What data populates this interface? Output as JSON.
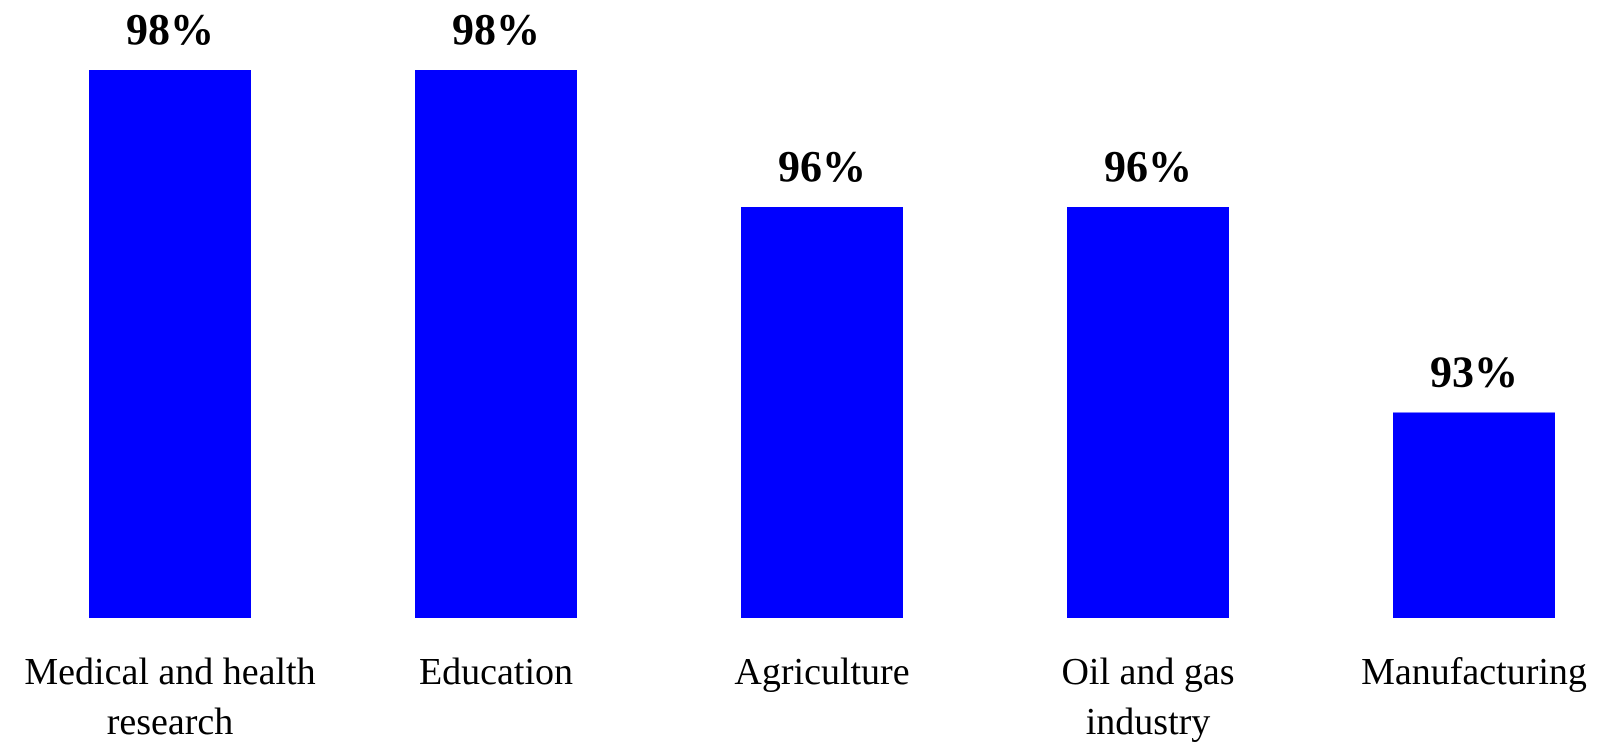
{
  "chart_data": {
    "type": "bar",
    "categories": [
      "Medical and health research",
      "Education",
      "Agriculture",
      "Oil and gas industry",
      "Manufacturing"
    ],
    "category_lines": [
      [
        "Medical and health",
        "research"
      ],
      [
        "Education"
      ],
      [
        "Agriculture"
      ],
      [
        "Oil and gas",
        "industry"
      ],
      [
        "Manufacturing"
      ]
    ],
    "values": [
      98,
      98,
      96,
      96,
      93
    ],
    "data_labels": [
      "98%",
      "98%",
      "96%",
      "96%",
      "93%"
    ],
    "value_unit": "%",
    "title": "",
    "xlabel": "",
    "ylabel": "",
    "ylim": [
      90,
      98
    ],
    "grid": false,
    "legend": "none",
    "bar_color": "#0000ff"
  }
}
